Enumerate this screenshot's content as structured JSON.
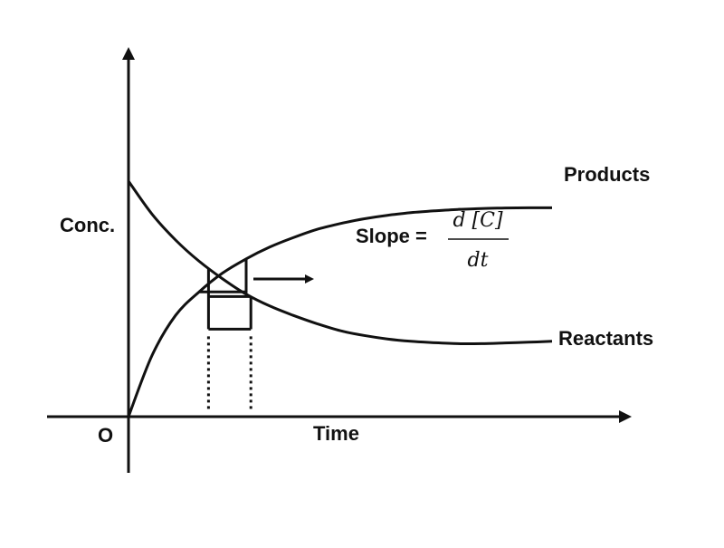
{
  "chart_data": {
    "type": "line",
    "title": "",
    "xlabel": "Time",
    "ylabel": "Conc.",
    "origin_label": "O",
    "xlim": [
      0,
      10
    ],
    "ylim": [
      0,
      10
    ],
    "grid": false,
    "legend": "none",
    "series": [
      {
        "name": "Products",
        "x": [
          0,
          0.5,
          1,
          1.5,
          2,
          2.5,
          3,
          3.5,
          4,
          4.5,
          5,
          5.5,
          6,
          6.5,
          7,
          7.5,
          8,
          8.5,
          9
        ],
        "y": [
          0,
          2.6,
          4.3,
          5.3,
          6.1,
          6.7,
          7.2,
          7.6,
          7.95,
          8.2,
          8.4,
          8.55,
          8.66,
          8.74,
          8.8,
          8.84,
          8.86,
          8.87,
          8.87
        ]
      },
      {
        "name": "Reactants",
        "x": [
          0,
          0.5,
          1,
          1.5,
          2,
          2.5,
          3,
          3.5,
          4,
          4.5,
          5,
          5.5,
          6,
          6.5,
          7,
          7.5,
          8,
          8.5,
          9
        ],
        "y": [
          10,
          8.6,
          7.5,
          6.6,
          5.85,
          5.2,
          4.7,
          4.3,
          3.95,
          3.65,
          3.45,
          3.3,
          3.2,
          3.14,
          3.1,
          3.1,
          3.13,
          3.16,
          3.2
        ]
      }
    ],
    "annotations": {
      "slope_label": "Slope =",
      "slope_numerator": "d [C]",
      "slope_denominator": "dt",
      "slope_triangle_x": [
        1.5,
        2.5
      ],
      "interval_x": [
        1.7,
        2.6
      ]
    }
  }
}
